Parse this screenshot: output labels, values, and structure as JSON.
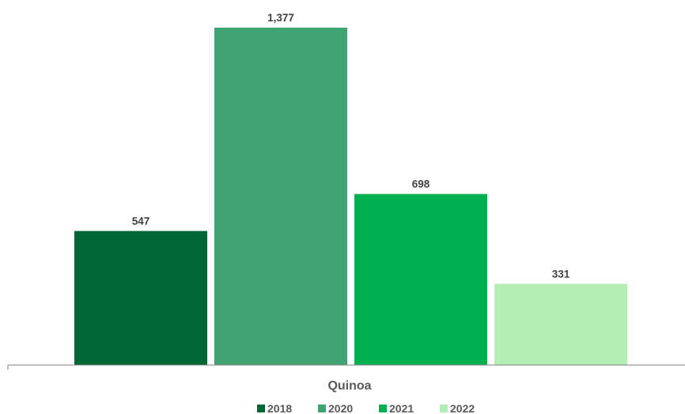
{
  "chart_data": {
    "type": "bar",
    "categories": [
      "Quinoa"
    ],
    "series": [
      {
        "name": "2018",
        "values": [
          547
        ],
        "color": "#006633"
      },
      {
        "name": "2020",
        "values": [
          1377
        ],
        "color": "#3FA372"
      },
      {
        "name": "2021",
        "values": [
          698
        ],
        "color": "#00B050"
      },
      {
        "name": "2022",
        "values": [
          331
        ],
        "color": "#B3EFB4"
      }
    ],
    "data_labels": [
      "547",
      "1,377",
      "698",
      "331"
    ],
    "title": "",
    "xlabel": "",
    "ylabel": "",
    "ylim": [
      0,
      1500
    ],
    "grid": false,
    "legend_position": "bottom"
  }
}
